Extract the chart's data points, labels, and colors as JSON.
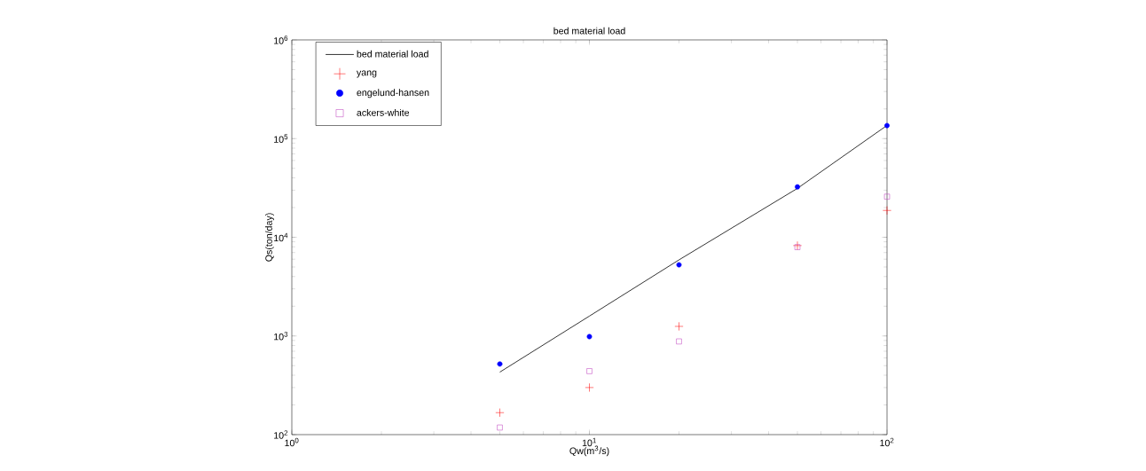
{
  "chart_data": {
    "type": "scatter",
    "title": "bed material load",
    "xlabel": "Qw(m$^{3}$/s)",
    "ylabel": "Qs(ton/day)",
    "x": [
      5,
      10,
      20,
      50,
      100
    ],
    "series": [
      {
        "name": "bed material load",
        "type": "line",
        "marker": "none",
        "color": "#000000",
        "values": [
          430,
          1590,
          5900,
          31300,
          136000
        ]
      },
      {
        "name": "yang",
        "marker": "cross",
        "color": "#ff0000",
        "values": [
          167,
          300,
          1250,
          8240,
          18700
        ]
      },
      {
        "name": "engelund-hansen",
        "marker": "circle",
        "color": "#0000ff",
        "values": [
          520,
          985,
          5260,
          32400,
          135500
        ]
      },
      {
        "name": "ackers-white",
        "marker": "square",
        "color": "#bf40bf",
        "values": [
          118,
          440,
          880,
          7950,
          25800
        ]
      }
    ],
    "log": "xy",
    "xlim": [
      1,
      100
    ],
    "ylim": [
      100,
      1000000
    ],
    "xticks": [
      {
        "value": 1,
        "label": "10$^{0}$"
      },
      {
        "value": 10,
        "label": "10$^{1}$"
      },
      {
        "value": 100,
        "label": "10$^{2}$"
      }
    ],
    "yticks": [
      {
        "value": 100,
        "label": "10$^{2}$"
      },
      {
        "value": 1000,
        "label": "10$^{3}$"
      },
      {
        "value": 10000,
        "label": "10$^{4}$"
      },
      {
        "value": 100000,
        "label": "10$^{5}$"
      },
      {
        "value": 1000000,
        "label": "10$^{6}$"
      }
    ],
    "grid": false,
    "legend": "top left"
  }
}
